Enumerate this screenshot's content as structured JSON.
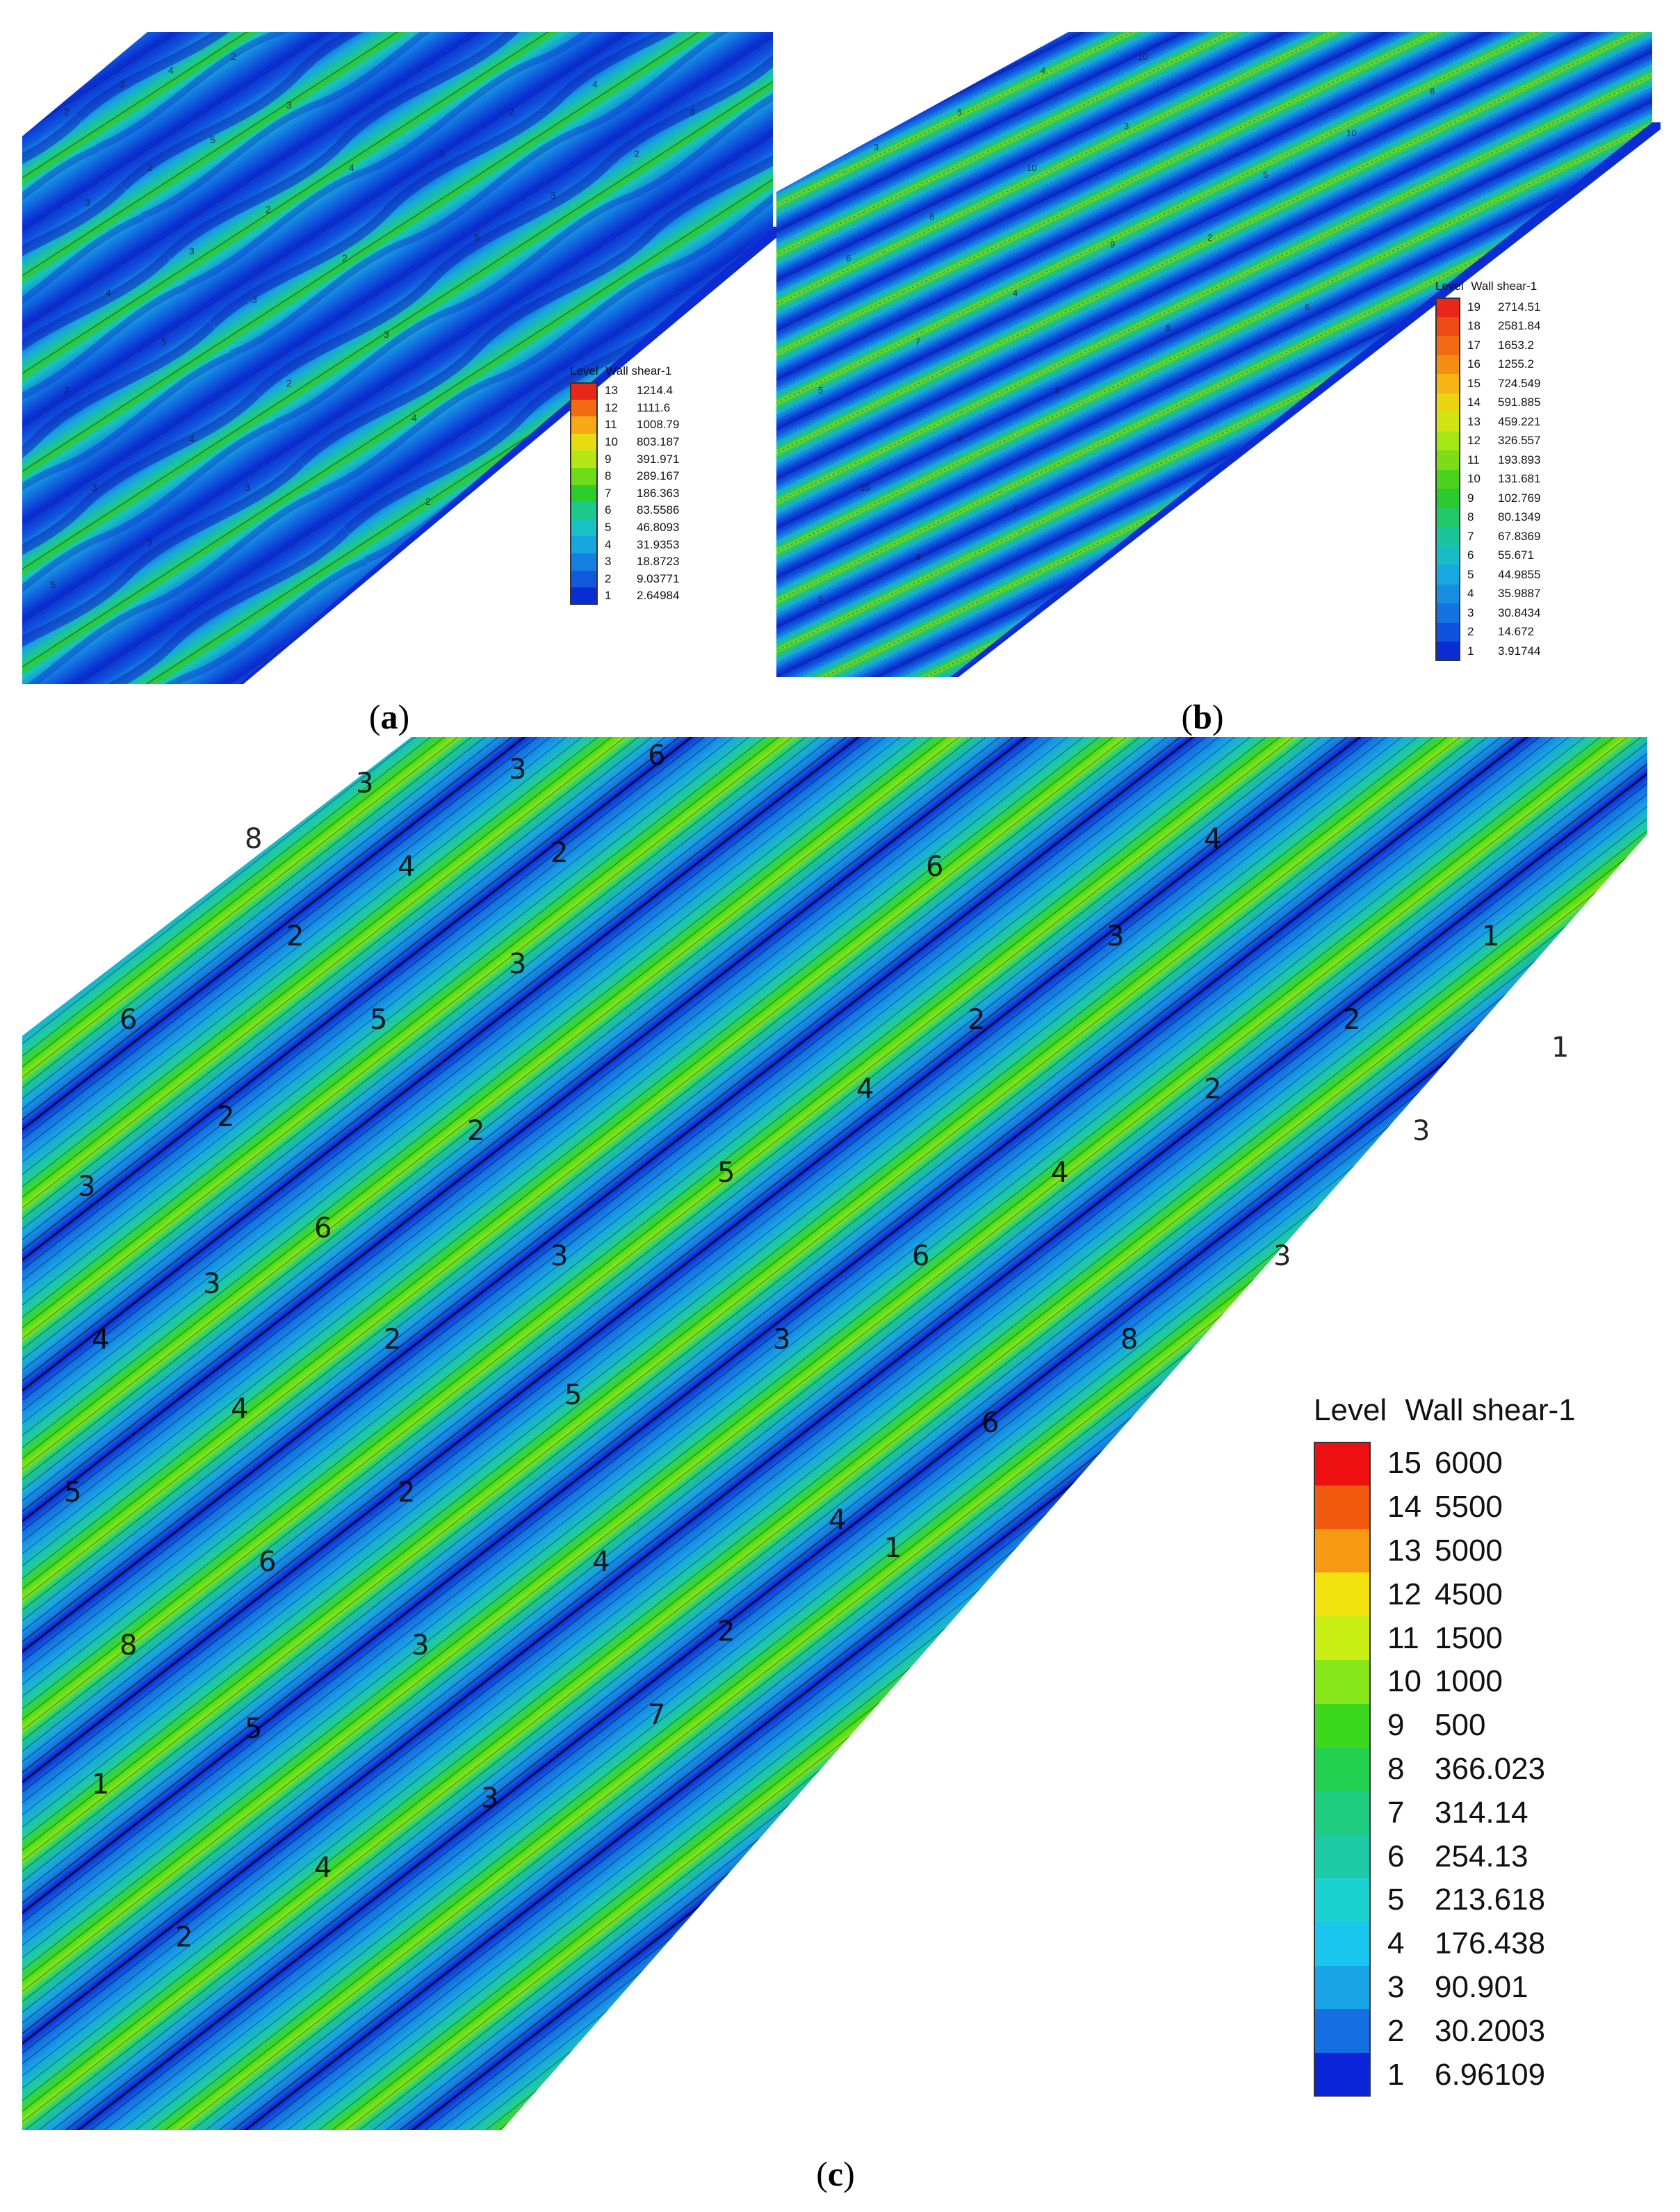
{
  "figure": {
    "panels": [
      {
        "id": "a",
        "caption": "a",
        "legend": {
          "title_level": "Level",
          "title_var": "Wall shear-1",
          "entries": [
            {
              "level": "13",
              "value": "1214.4",
              "color": "#e8261a"
            },
            {
              "level": "12",
              "value": "1111.6",
              "color": "#f26a12"
            },
            {
              "level": "11",
              "value": "1008.79",
              "color": "#f7a916"
            },
            {
              "level": "10",
              "value": "803.187",
              "color": "#e6dc10"
            },
            {
              "level": "9",
              "value": "391.971",
              "color": "#b4e614"
            },
            {
              "level": "8",
              "value": "289.167",
              "color": "#6fdc1a"
            },
            {
              "level": "7",
              "value": "186.363",
              "color": "#2ccd28"
            },
            {
              "level": "6",
              "value": "83.5586",
              "color": "#1cc98a"
            },
            {
              "level": "5",
              "value": "46.8093",
              "color": "#18c2c4"
            },
            {
              "level": "4",
              "value": "31.9353",
              "color": "#18a6e0"
            },
            {
              "level": "3",
              "value": "18.8723",
              "color": "#1480e2"
            },
            {
              "level": "2",
              "value": "9.03771",
              "color": "#1058de"
            },
            {
              "level": "1",
              "value": "2.64984",
              "color": "#0a2cd2"
            }
          ]
        }
      },
      {
        "id": "b",
        "caption": "b",
        "legend": {
          "title_level": "Level",
          "title_var": "Wall shear-1",
          "entries": [
            {
              "level": "19",
              "value": "2714.51",
              "color": "#e8261a"
            },
            {
              "level": "18",
              "value": "2581.84",
              "color": "#ee4a16"
            },
            {
              "level": "17",
              "value": "1653.2",
              "color": "#f26a12"
            },
            {
              "level": "16",
              "value": "1255.2",
              "color": "#f78c14"
            },
            {
              "level": "15",
              "value": "724.549",
              "color": "#f7b416"
            },
            {
              "level": "14",
              "value": "591.885",
              "color": "#ecd412"
            },
            {
              "level": "13",
              "value": "459.221",
              "color": "#cfe412"
            },
            {
              "level": "12",
              "value": "326.557",
              "color": "#a6e614"
            },
            {
              "level": "11",
              "value": "193.893",
              "color": "#7cdc18"
            },
            {
              "level": "10",
              "value": "131.681",
              "color": "#4cd21e"
            },
            {
              "level": "9",
              "value": "102.769",
              "color": "#2cc830"
            },
            {
              "level": "8",
              "value": "80.1349",
              "color": "#22c86a"
            },
            {
              "level": "7",
              "value": "67.8369",
              "color": "#1cc49c"
            },
            {
              "level": "6",
              "value": "55.671",
              "color": "#18bcc6"
            },
            {
              "level": "5",
              "value": "44.9855",
              "color": "#18a8e0"
            },
            {
              "level": "4",
              "value": "35.9887",
              "color": "#168ee2"
            },
            {
              "level": "3",
              "value": "30.8434",
              "color": "#1472e2"
            },
            {
              "level": "2",
              "value": "14.672",
              "color": "#1052de"
            },
            {
              "level": "1",
              "value": "3.91744",
              "color": "#0a2cd2"
            }
          ]
        }
      },
      {
        "id": "c",
        "caption": "c",
        "legend": {
          "title_level": "Level",
          "title_var": "Wall shear-1",
          "entries": [
            {
              "level": "15",
              "value": "6000",
              "color": "#ee1010"
            },
            {
              "level": "14",
              "value": "5500",
              "color": "#f25a10"
            },
            {
              "level": "13",
              "value": "5000",
              "color": "#f79a12"
            },
            {
              "level": "12",
              "value": "4500",
              "color": "#f2e210"
            },
            {
              "level": "11",
              "value": "1500",
              "color": "#c8ee14"
            },
            {
              "level": "10",
              "value": "1000",
              "color": "#86e618"
            },
            {
              "level": "9",
              "value": "500",
              "color": "#3cd81e"
            },
            {
              "level": "8",
              "value": "366.023",
              "color": "#24d050"
            },
            {
              "level": "7",
              "value": "314.14",
              "color": "#1fcc80"
            },
            {
              "level": "6",
              "value": "254.13",
              "color": "#1ccaa6"
            },
            {
              "level": "5",
              "value": "213.618",
              "color": "#1ad2d0"
            },
            {
              "level": "4",
              "value": "176.438",
              "color": "#18c6ee"
            },
            {
              "level": "3",
              "value": "90.901",
              "color": "#18a4e6"
            },
            {
              "level": "2",
              "value": "30.2003",
              "color": "#1470e2"
            },
            {
              "level": "1",
              "value": "6.96109",
              "color": "#0a24d8"
            }
          ]
        }
      }
    ]
  }
}
